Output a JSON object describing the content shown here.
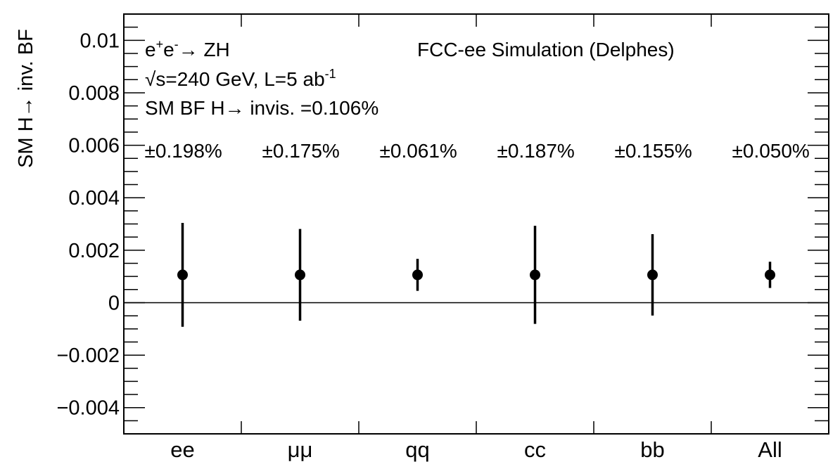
{
  "chart_data": {
    "type": "scatter",
    "title": "",
    "xlabel": "",
    "ylabel": "SM H→ inv.  BF",
    "categories": [
      "ee",
      "μμ",
      "qq",
      "cc",
      "bb",
      "All"
    ],
    "values": [
      0.00106,
      0.00106,
      0.00106,
      0.00106,
      0.00106,
      0.00106
    ],
    "errors": [
      0.00198,
      0.00175,
      0.00061,
      0.00187,
      0.00155,
      0.0005
    ],
    "error_labels": [
      "±0.198%",
      "±0.175%",
      "±0.061%",
      "±0.187%",
      "±0.155%",
      "±0.050%"
    ],
    "ylim": [
      -0.005,
      0.011
    ],
    "yticks": [
      -0.004,
      -0.002,
      0,
      0.002,
      0.004,
      0.006,
      0.008,
      0.01
    ],
    "ytick_labels": [
      "−0.004",
      "−0.002",
      "0",
      "0.002",
      "0.004",
      "0.006",
      "0.008",
      "0.01"
    ],
    "reference_line": 0,
    "grid": false,
    "annotations": {
      "process_prefix": "e",
      "process_sup1": "+",
      "process_mid": "e",
      "process_sup2": "-",
      "process_suffix": "→ ZH",
      "energy": "√s=240 GeV, L=5 ab",
      "energy_sup": "-1",
      "sm_bf": "SM BF H→ invis. =0.106%",
      "experiment": "FCC-ee Simulation (Delphes)"
    }
  }
}
